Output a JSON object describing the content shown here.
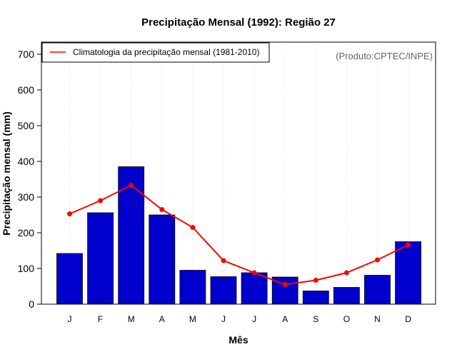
{
  "colors": {
    "bar_fill": "#0000CC",
    "bar_stroke": "#000000",
    "line": "#FF0000",
    "grid": "#D3D3D3",
    "credit": "#666666"
  },
  "chart_data": {
    "type": "bar",
    "title": "Precipitação Mensal (1992): Região 27",
    "xlabel": "Mês",
    "ylabel": "Precipitação mensal (mm)",
    "ylim": [
      0,
      700
    ],
    "yticks": [
      0,
      100,
      200,
      300,
      400,
      500,
      600,
      700
    ],
    "grid": "vertical dotted",
    "categories": [
      "J",
      "F",
      "M",
      "A",
      "M",
      "J",
      "J",
      "A",
      "S",
      "O",
      "N",
      "D"
    ],
    "series": [
      {
        "name": "Precipitação mensal (1992)",
        "kind": "bar",
        "values": [
          142,
          256,
          385,
          250,
          95,
          77,
          88,
          76,
          37,
          47,
          81,
          175
        ]
      },
      {
        "name": "Climatologia da precipitação mensal (1981-2010)",
        "kind": "line",
        "values": [
          253,
          290,
          333,
          265,
          215,
          122,
          88,
          55,
          67,
          88,
          124,
          166
        ]
      }
    ],
    "legend": {
      "position": "top-left",
      "entries": [
        "Climatologia da precipitação mensal (1981-2010)"
      ]
    },
    "annotation": "(Produto:CPTEC/INPE)"
  }
}
